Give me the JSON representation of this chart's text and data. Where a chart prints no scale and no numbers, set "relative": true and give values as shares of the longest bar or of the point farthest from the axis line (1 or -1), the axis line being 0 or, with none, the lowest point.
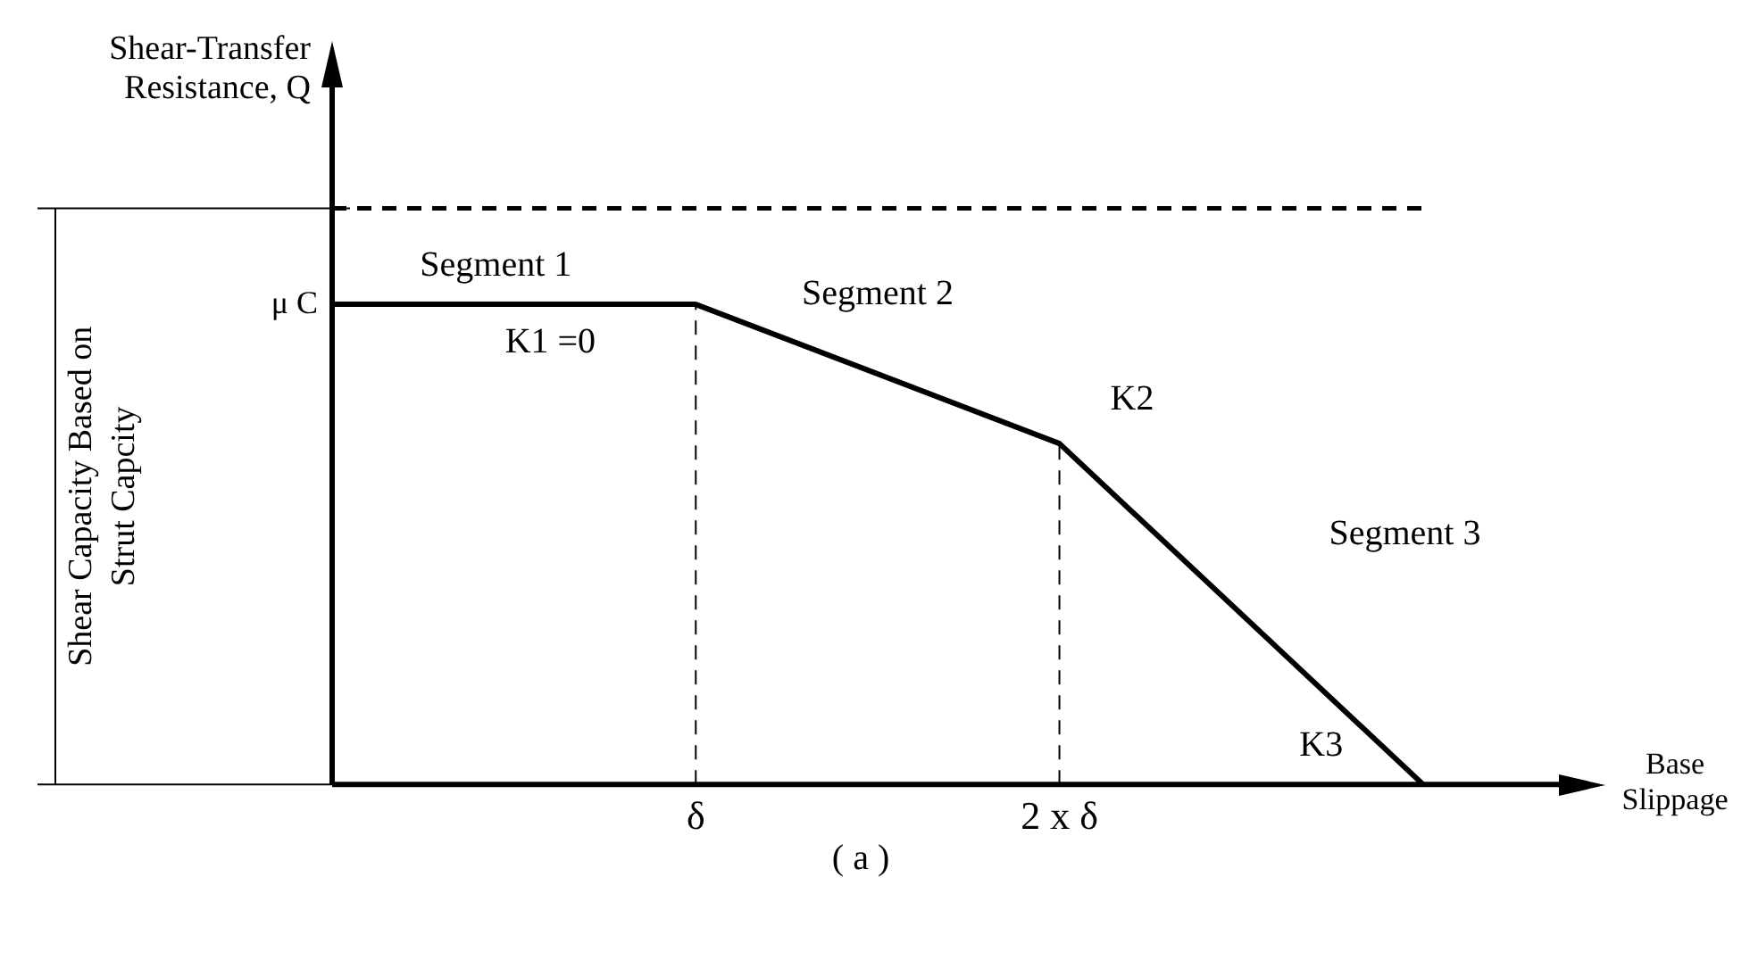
{
  "chart_data": {
    "type": "line",
    "relative": true,
    "categories": [
      null,
      "δ",
      "2 x δ",
      null
    ],
    "series": [
      {
        "color": "#000000",
        "values": [
          1,
          1,
          0.71,
          0
        ]
      }
    ],
    "xlabel": "Base Slippage",
    "ref_lines": [
      {
        "axis": "x",
        "value": "δ",
        "line_style": "dashed"
      },
      {
        "axis": "x",
        "value": "2 x δ",
        "line_style": "dashed"
      },
      {
        "axis": "y",
        "value": 1.2,
        "line_style": "dashed"
      }
    ],
    "annotations": [
      "Shear Capacity Based on Strut Capcity",
      "( a )",
      "μ C",
      "Segment 1",
      "K1 =0",
      "Segment 2",
      "K2",
      "Segment 3",
      "K3",
      "Shear-Transfer Resistance, Q"
    ],
    "grid": false,
    "legend": false,
    "marker": "none",
    "line_style": "solid"
  }
}
